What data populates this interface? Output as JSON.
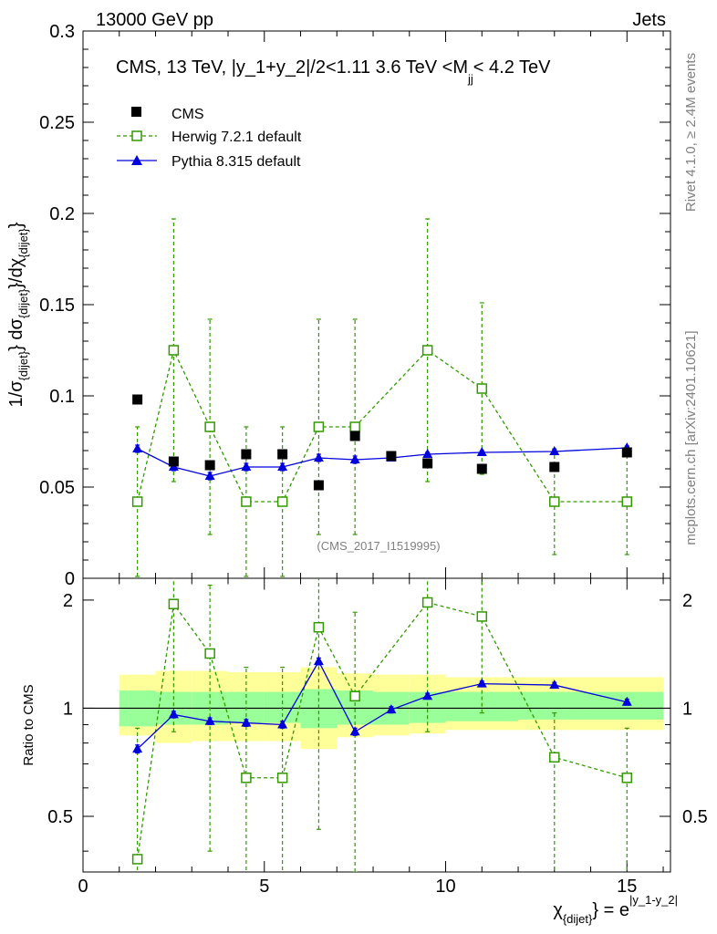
{
  "header": {
    "left": "13000 GeV pp",
    "right": "Jets"
  },
  "side": {
    "rivet": "Rivet 4.1.0, ≥ 2.4M events",
    "mcplots": "mcplots.cern.ch [arXiv:2401.10621]"
  },
  "chart_data": {
    "type": "scatter",
    "title": "CMS, 13 TeV, |y_1+y_2|/2<1.11 3.6 TeV <M",
    "title_sub": "jj",
    "title_end": "< 4.2 TeV",
    "watermark": "(CMS_2017_I1519995)",
    "ylabel_parts": [
      "1/σ",
      "{dijet}",
      "} dσ",
      "{dijet}",
      "}/dχ",
      "{dijet}",
      "}"
    ],
    "xlabel_main": "χ",
    "xlabel_sub": "{dijet}",
    "xlabel_mid": "} = e",
    "xlabel_sup": "|y_1-y_2|",
    "ratio_ylabel": "Ratio to CMS",
    "xlim": [
      0,
      16.2
    ],
    "ylim": [
      0,
      0.3
    ],
    "ratio_ylim": [
      0.35,
      2.3
    ],
    "x_ticks": [
      "0",
      "5",
      "10",
      "15"
    ],
    "y_ticks": [
      "0",
      "0.05",
      "0.1",
      "0.15",
      "0.2",
      "0.25",
      "0.3"
    ],
    "ratio_ticks": [
      "0.5",
      "1",
      "2"
    ],
    "bins": [
      [
        1,
        2
      ],
      [
        2,
        3
      ],
      [
        3,
        4
      ],
      [
        4,
        5
      ],
      [
        5,
        6
      ],
      [
        6,
        7
      ],
      [
        7,
        8
      ],
      [
        8,
        9
      ],
      [
        9,
        10
      ],
      [
        10,
        12
      ],
      [
        12,
        14
      ],
      [
        14,
        16
      ]
    ],
    "x": [
      1.5,
      2.5,
      3.5,
      4.5,
      5.5,
      6.5,
      7.5,
      8.5,
      9.5,
      11,
      13,
      15
    ],
    "legend": [
      "CMS",
      "Herwig 7.2.1 default",
      "Pythia 8.315 default"
    ],
    "series": [
      {
        "name": "CMS",
        "values": [
          0.098,
          0.064,
          0.062,
          0.068,
          0.068,
          0.051,
          0.078,
          0.067,
          0.063,
          0.06,
          0.061,
          0.069
        ],
        "err": [
          0.001,
          0.001,
          0.001,
          0.001,
          0.001,
          0.001,
          0.001,
          0.001,
          0.001,
          0.001,
          0.001,
          0.001
        ]
      },
      {
        "name": "Herwig 7.2.1 default",
        "values": [
          0.042,
          0.125,
          0.083,
          0.042,
          0.042,
          0.083,
          0.083,
          null,
          0.125,
          0.104,
          0.042,
          0.042
        ],
        "err": [
          0.041,
          0.072,
          0.059,
          0.041,
          0.041,
          0.059,
          0.059,
          null,
          0.072,
          0.047,
          0.029,
          0.029
        ]
      },
      {
        "name": "Pythia 8.315 default",
        "values": [
          0.071,
          0.061,
          0.056,
          0.061,
          0.061,
          0.066,
          0.065,
          0.066,
          0.068,
          0.069,
          0.0695,
          0.0715
        ],
        "err": [
          0.002,
          0.002,
          0.002,
          0.002,
          0.002,
          0.002,
          0.002,
          0.001,
          0.001,
          0.001,
          0.001,
          0.001
        ]
      }
    ],
    "ratio": {
      "herwig": {
        "values": [
          0.38,
          1.95,
          1.42,
          0.64,
          0.64,
          1.68,
          1.08,
          null,
          1.97,
          1.8,
          0.73,
          0.64
        ],
        "hi": [
          0.88,
          3.0,
          2.2,
          1.3,
          1.3,
          3.0,
          1.85,
          null,
          3.0,
          2.6,
          0.97,
          0.88
        ],
        "lo": [
          0.0,
          0.86,
          0.4,
          0.0,
          0.0,
          0.46,
          0.32,
          null,
          0.86,
          0.97,
          0.0,
          0.0
        ]
      },
      "pythia": {
        "values": [
          0.77,
          0.96,
          0.92,
          0.91,
          0.9,
          1.35,
          0.86,
          0.99,
          1.08,
          1.17,
          1.16,
          1.04
        ],
        "err": [
          0.02,
          0.02,
          0.02,
          0.02,
          0.02,
          0.03,
          0.02,
          0.02,
          0.02,
          0.02,
          0.02,
          0.02
        ]
      },
      "band_green": [
        [
          0.89,
          1.12
        ],
        [
          0.9,
          1.11
        ],
        [
          0.9,
          1.11
        ],
        [
          0.91,
          1.11
        ],
        [
          0.91,
          1.11
        ],
        [
          0.88,
          1.13
        ],
        [
          0.9,
          1.12
        ],
        [
          0.9,
          1.11
        ],
        [
          0.91,
          1.11
        ],
        [
          0.92,
          1.11
        ],
        [
          0.93,
          1.11
        ],
        [
          0.93,
          1.11
        ]
      ],
      "band_yellow": [
        [
          0.84,
          1.24
        ],
        [
          0.8,
          1.27
        ],
        [
          0.81,
          1.27
        ],
        [
          0.81,
          1.26
        ],
        [
          0.81,
          1.26
        ],
        [
          0.77,
          1.3
        ],
        [
          0.83,
          1.25
        ],
        [
          0.84,
          1.24
        ],
        [
          0.85,
          1.24
        ],
        [
          0.87,
          1.22
        ],
        [
          0.87,
          1.22
        ],
        [
          0.87,
          1.22
        ]
      ]
    },
    "colors": {
      "cms": "#000000",
      "herwig": "#339900",
      "pythia": "#0000dd",
      "band_green": "#99ff99",
      "band_yellow": "#ffff99"
    }
  }
}
